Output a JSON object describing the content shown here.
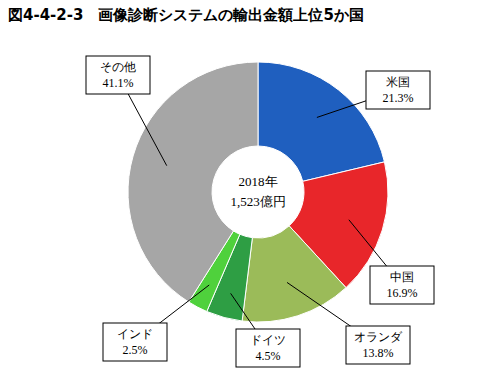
{
  "chart_data": {
    "type": "pie",
    "title": "図4-4-2-3　画像診断システムの輸出金額上位5か国",
    "annotations": [
      "2018年",
      "1,523億円"
    ],
    "categories": [
      "米国",
      "中国",
      "オランダ",
      "ドイツ",
      "インド",
      "その他"
    ],
    "values": [
      21.3,
      16.9,
      13.8,
      4.5,
      2.5,
      41.1
    ],
    "value_labels": [
      "21.3%",
      "16.9%",
      "13.8%",
      "4.5%",
      "2.5%",
      "41.1%"
    ],
    "colors": [
      "#1f5fbf",
      "#e8262a",
      "#9bbb59",
      "#2e9e44",
      "#4fd13c",
      "#a6a6a6"
    ],
    "data_labels": true
  }
}
